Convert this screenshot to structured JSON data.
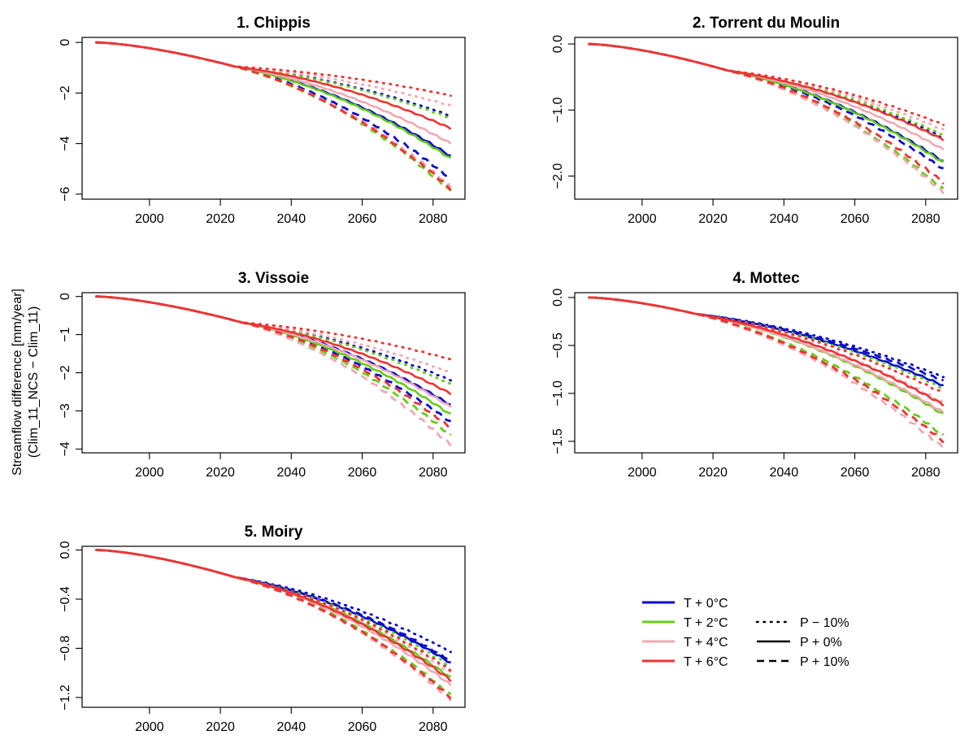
{
  "figure": {
    "ylabel_line1": "Streamflow difference [mm/year]",
    "ylabel_line2": "(Clim_11_NCS − Clim_11)"
  },
  "legend": {
    "temperature": [
      {
        "label": "T + 0°C",
        "color": "#0a0acd"
      },
      {
        "label": "T + 2°C",
        "color": "#66cc1a"
      },
      {
        "label": "T + 4°C",
        "color": "#f0a8b4"
      },
      {
        "label": "T + 6°C",
        "color": "#ee3333"
      }
    ],
    "precipitation": [
      {
        "label": "P − 10%",
        "style": "dotted"
      },
      {
        "label": "P + 0%",
        "style": "solid"
      },
      {
        "label": "P + 10%",
        "style": "dashed"
      }
    ]
  },
  "chart_data": [
    {
      "type": "line",
      "title": "1. Chippis",
      "x_range": [
        1985,
        2085
      ],
      "xticks": [
        2000,
        2020,
        2040,
        2060,
        2080
      ],
      "ylim": [
        -6.2,
        0.2
      ],
      "yticks": [
        0,
        -2,
        -4,
        -6
      ],
      "ytick_labels": [
        "0",
        "−2",
        "−4",
        "−6"
      ],
      "divergence_year": 2024,
      "value_at_divergence": -0.95,
      "end_values_2085": {
        "T + 0°C": {
          "P − 10%": -2.9,
          "P + 0%": -4.5,
          "P + 10%": -5.4
        },
        "T + 2°C": {
          "P − 10%": -3.0,
          "P + 0%": -4.6,
          "P + 10%": -5.9
        },
        "T + 4°C": {
          "P − 10%": -2.5,
          "P + 0%": -4.0,
          "P + 10%": -5.7
        },
        "T + 6°C": {
          "P − 10%": -2.1,
          "P + 0%": -3.4,
          "P + 10%": -5.8
        }
      }
    },
    {
      "type": "line",
      "title": "2. Torrent du Moulin",
      "x_range": [
        1985,
        2085
      ],
      "xticks": [
        2000,
        2020,
        2040,
        2060,
        2080
      ],
      "ylim": [
        -2.35,
        0.1
      ],
      "yticks": [
        0,
        -1,
        -2
      ],
      "ytick_labels": [
        "0.0",
        "−1.0",
        "−2.0"
      ],
      "divergence_year": 2024,
      "value_at_divergence": -0.4,
      "end_values_2085": {
        "T + 0°C": {
          "P − 10%": -1.42,
          "P + 0%": -1.78,
          "P + 10%": -1.9
        },
        "T + 2°C": {
          "P − 10%": -1.38,
          "P + 0%": -1.8,
          "P + 10%": -2.2
        },
        "T + 4°C": {
          "P − 10%": -1.3,
          "P + 0%": -1.6,
          "P + 10%": -2.25
        },
        "T + 6°C": {
          "P − 10%": -1.22,
          "P + 0%": -1.45,
          "P + 10%": -2.1
        }
      }
    },
    {
      "type": "line",
      "title": "3. Vissoie",
      "x_range": [
        1985,
        2085
      ],
      "xticks": [
        2000,
        2020,
        2040,
        2060,
        2080
      ],
      "ylim": [
        -4.1,
        0.1
      ],
      "yticks": [
        0,
        -1,
        -2,
        -3,
        -4
      ],
      "ytick_labels": [
        "0",
        "−1",
        "−2",
        "−3",
        "−4"
      ],
      "divergence_year": 2026,
      "value_at_divergence": -0.68,
      "end_values_2085": {
        "T + 0°C": {
          "P − 10%": -2.2,
          "P + 0%": -2.85,
          "P + 10%": -3.3
        },
        "T + 2°C": {
          "P − 10%": -2.3,
          "P + 0%": -3.1,
          "P + 10%": -3.65
        },
        "T + 4°C": {
          "P − 10%": -2.0,
          "P + 0%": -2.9,
          "P + 10%": -3.9
        },
        "T + 6°C": {
          "P − 10%": -1.65,
          "P + 0%": -2.55,
          "P + 10%": -3.45
        }
      }
    },
    {
      "type": "line",
      "title": "4. Mottec",
      "x_range": [
        1985,
        2085
      ],
      "xticks": [
        2000,
        2020,
        2040,
        2060,
        2080
      ],
      "ylim": [
        -1.62,
        0.05
      ],
      "yticks": [
        0,
        -0.5,
        -1,
        -1.5
      ],
      "ytick_labels": [
        "0.0",
        "−0.5",
        "−1.0",
        "−1.5"
      ],
      "divergence_year": 2015,
      "value_at_divergence": -0.17,
      "end_values_2085": {
        "T + 0°C": {
          "P − 10%": -0.83,
          "P + 0%": -0.92,
          "P + 10%": -0.87
        },
        "T + 2°C": {
          "P − 10%": -0.95,
          "P + 0%": -1.22,
          "P + 10%": -1.44
        },
        "T + 4°C": {
          "P − 10%": -1.1,
          "P + 0%": -1.2,
          "P + 10%": -1.57
        },
        "T + 6°C": {
          "P − 10%": -1.0,
          "P + 0%": -1.12,
          "P + 10%": -1.5
        }
      }
    },
    {
      "type": "line",
      "title": "5. Moiry",
      "x_range": [
        1985,
        2085
      ],
      "xticks": [
        2000,
        2020,
        2040,
        2060,
        2080
      ],
      "ylim": [
        -1.28,
        0.03
      ],
      "yticks": [
        0,
        -0.4,
        -0.8,
        -1.2
      ],
      "ytick_labels": [
        "0.0",
        "−0.4",
        "−0.8",
        "−1.2"
      ],
      "divergence_year": 2024,
      "value_at_divergence": -0.22,
      "end_values_2085": {
        "T + 0°C": {
          "P − 10%": -0.83,
          "P + 0%": -0.92,
          "P + 10%": -0.9
        },
        "T + 2°C": {
          "P − 10%": -0.95,
          "P + 0%": -1.04,
          "P + 10%": -1.18
        },
        "T + 4°C": {
          "P − 10%": -1.0,
          "P + 0%": -1.1,
          "P + 10%": -1.22
        },
        "T + 6°C": {
          "P − 10%": -0.98,
          "P + 0%": -1.06,
          "P + 10%": -1.2
        }
      }
    }
  ]
}
